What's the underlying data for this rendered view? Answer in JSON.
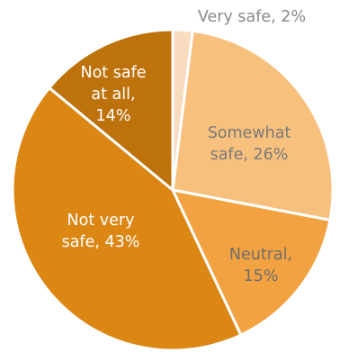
{
  "chart_data": {
    "type": "pie",
    "title": "",
    "start_angle_deg": 0,
    "direction": "clockwise",
    "slices": [
      {
        "label_lines": [
          "Very safe, 2%"
        ],
        "category": "Very safe",
        "value": 2,
        "color": "#f7dcc0",
        "label_color": "#8a8a8a"
      },
      {
        "label_lines": [
          "Somewhat",
          "safe, 26%"
        ],
        "category": "Somewhat safe",
        "value": 26,
        "color": "#f7c07d",
        "label_color": "#7a7a7a"
      },
      {
        "label_lines": [
          "Neutral,",
          "15%"
        ],
        "category": "Neutral",
        "value": 15,
        "color": "#f2a240",
        "label_color": "#6e6e6e"
      },
      {
        "label_lines": [
          "Not very",
          "safe, 43%"
        ],
        "category": "Not very safe",
        "value": 43,
        "color": "#dc8714",
        "label_color": "#ffffff"
      },
      {
        "label_lines": [
          "Not safe",
          "at all,",
          "14%"
        ],
        "category": "Not safe at all",
        "value": 14,
        "color": "#bd720c",
        "label_color": "#ffffff"
      }
    ]
  }
}
